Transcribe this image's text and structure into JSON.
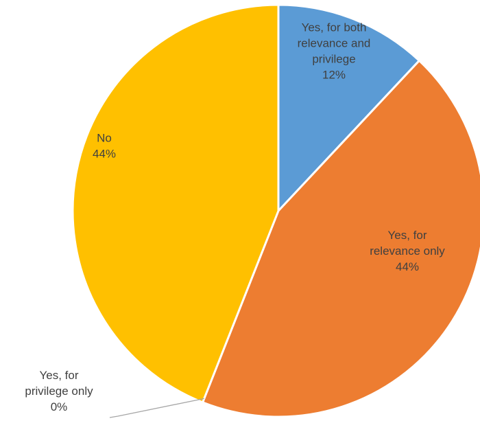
{
  "chart_data": {
    "type": "pie",
    "title": "",
    "start_angle_deg": 0,
    "direction": "clockwise",
    "legend": "none",
    "slices": [
      {
        "name": "Yes, for both relevance and privilege",
        "value": 12,
        "percent_label": "12%",
        "color": "#5B9BD5",
        "label_lines": [
          "Yes, for both",
          "relevance and",
          "privilege"
        ]
      },
      {
        "name": "Yes, for relevance only",
        "value": 44,
        "percent_label": "44%",
        "color": "#ED7D31",
        "label_lines": [
          "Yes, for",
          "relevance only"
        ]
      },
      {
        "name": "Yes, for privilege only",
        "value": 0,
        "percent_label": "0%",
        "color": "#A5A5A5",
        "label_lines": [
          "Yes, for",
          "privilege only"
        ]
      },
      {
        "name": "No",
        "value": 44,
        "percent_label": "44%",
        "color": "#FFC000",
        "label_lines": [
          "No"
        ]
      }
    ]
  }
}
